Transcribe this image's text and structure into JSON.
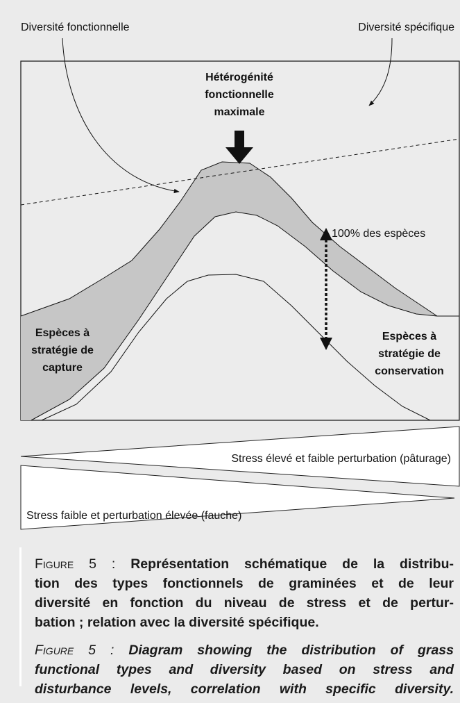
{
  "diagram": {
    "label_functional": "Diversité fonctionnelle",
    "label_specific": "Diversité spécifique",
    "peak_label": [
      "Hétérogénité",
      "fonctionnelle",
      "maximale"
    ],
    "range_label": "100% des espèces",
    "left_label": [
      "Espèces à",
      "stratégie de",
      "capture"
    ],
    "right_label": [
      "Espèces à",
      "stratégie de",
      "conservation"
    ],
    "gradient_top": "Stress élevé et faible perturbation (pâturage)",
    "gradient_bottom": "Stress faible et perturbation élevée (fauche)"
  },
  "caption": {
    "fr_label": "Figure 5 :",
    "fr_lines": [
      "Représentation schématique de la distribu-",
      "tion des types fonctionnels de graminées et de leur",
      "diversité en fonction du niveau de stress et de pertur-",
      "bation ; relation avec la diversité spécifique."
    ],
    "en_label": "Figure 5 :",
    "en_lines": [
      "Diagram showing the distribution of grass",
      "functional types and diversity based on stress and",
      "disturbance levels, correlation with specific diversity."
    ]
  }
}
